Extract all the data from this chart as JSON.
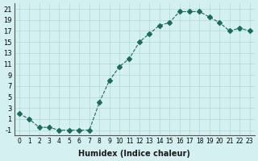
{
  "x": [
    0,
    1,
    2,
    3,
    4,
    5,
    6,
    7,
    8,
    9,
    10,
    11,
    12,
    13,
    14,
    15,
    16,
    17,
    18,
    19,
    20,
    21,
    22,
    23
  ],
  "y": [
    2,
    1,
    -0.5,
    -0.5,
    -1,
    -1,
    -1,
    -1,
    4,
    8,
    10.5,
    12,
    15,
    16.5,
    18,
    18.5,
    20.5,
    20.5,
    20.5,
    19.5,
    18.5,
    17,
    17.5,
    17
  ],
  "xlabel": "Humidex (Indice chaleur)",
  "ylim": [
    -2,
    22
  ],
  "xlim": [
    -0.5,
    23.5
  ],
  "yticks": [
    -1,
    1,
    3,
    5,
    7,
    9,
    11,
    13,
    15,
    17,
    19,
    21
  ],
  "xticks": [
    0,
    1,
    2,
    3,
    4,
    5,
    6,
    7,
    8,
    9,
    10,
    11,
    12,
    13,
    14,
    15,
    16,
    17,
    18,
    19,
    20,
    21,
    22,
    23
  ],
  "line_color": "#1a6b5a",
  "marker": "D",
  "marker_size": 3,
  "line_width": 0.8,
  "bg_color": "#d4f0f0",
  "grid_color": "#b0d8d8"
}
